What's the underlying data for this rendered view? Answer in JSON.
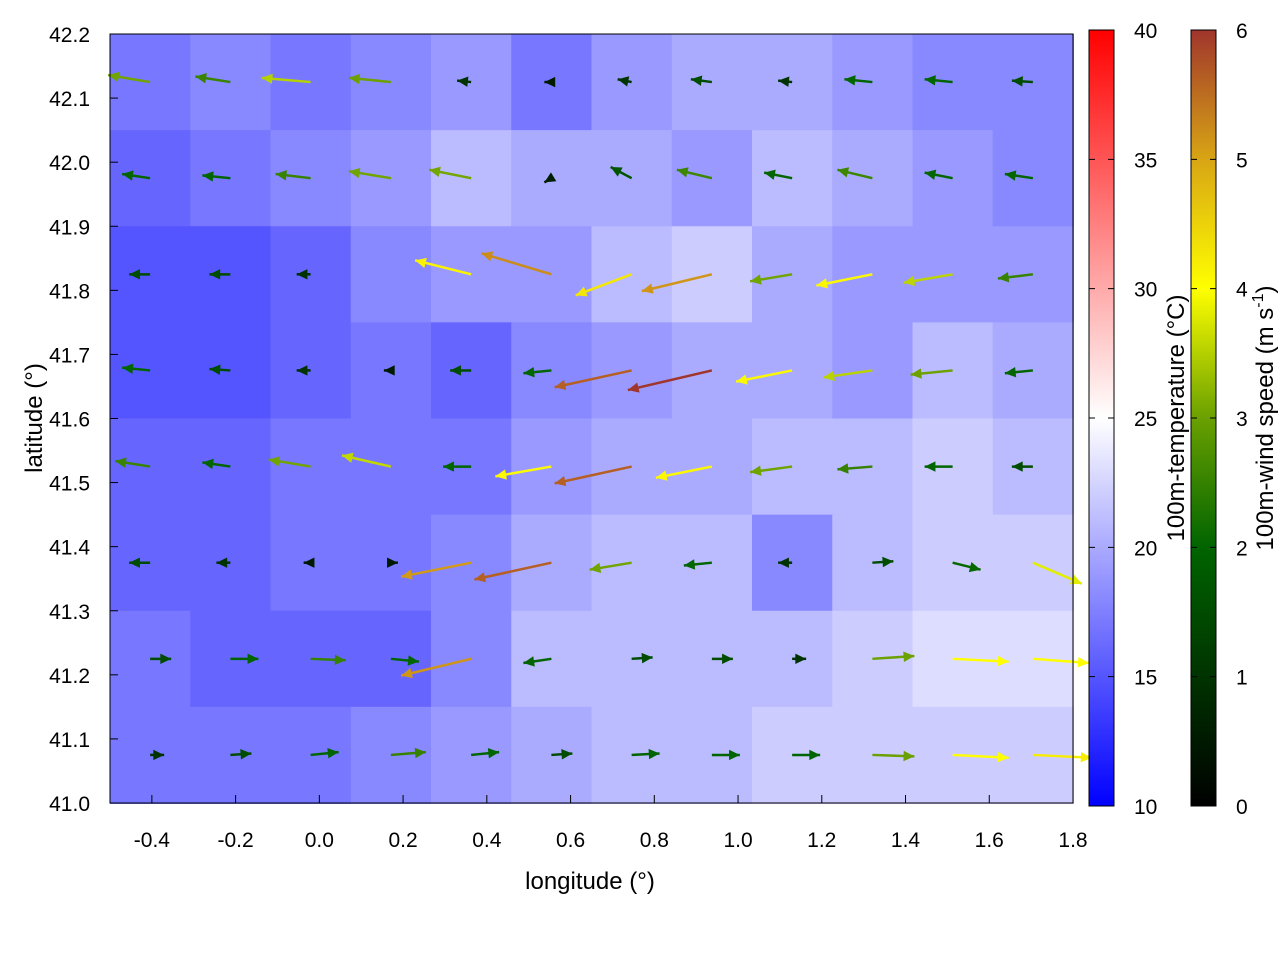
{
  "chart_data": {
    "type": "heatmap",
    "xlabel": "longitude (°)",
    "ylabel": "latitude (°)",
    "xlim": [
      -0.5,
      1.8
    ],
    "ylim": [
      41.0,
      42.2
    ],
    "xticks": [
      "-0.4",
      "-0.2",
      "0.0",
      "0.2",
      "0.4",
      "0.6",
      "0.8",
      "1.0",
      "1.2",
      "1.4",
      "1.6",
      "1.8"
    ],
    "xtick_values": [
      -0.4,
      -0.2,
      0.0,
      0.2,
      0.4,
      0.6,
      0.8,
      1.0,
      1.2,
      1.4,
      1.6,
      1.8
    ],
    "yticks": [
      "41.0",
      "41.1",
      "41.2",
      "41.3",
      "41.4",
      "41.5",
      "41.6",
      "41.7",
      "41.8",
      "41.9",
      "42.0",
      "42.1",
      "42.2"
    ],
    "ytick_values": [
      41.0,
      41.1,
      41.2,
      41.3,
      41.4,
      41.5,
      41.6,
      41.7,
      41.8,
      41.9,
      42.0,
      42.1,
      42.2
    ],
    "temperature_colorbar": {
      "label": "100m-temperature (°C)",
      "range": [
        10,
        40
      ],
      "ticks": [
        "10",
        "15",
        "20",
        "25",
        "30",
        "35",
        "40"
      ],
      "tick_values": [
        10,
        15,
        20,
        25,
        30,
        35,
        40
      ],
      "colors": [
        "#0000ff",
        "#ffffff",
        "#ff0000"
      ]
    },
    "wind_colorbar": {
      "label": "100m-wind speed (m s",
      "label_sup": "-1",
      "label_end": ")",
      "range": [
        0,
        6
      ],
      "ticks": [
        "0",
        "1",
        "2",
        "3",
        "4",
        "5",
        "6"
      ],
      "tick_values": [
        0,
        1,
        2,
        3,
        4,
        5,
        6
      ],
      "colors": [
        "#000000",
        "#003300",
        "#006400",
        "#6aa000",
        "#ffff00",
        "#d8a514",
        "#a0352c"
      ]
    },
    "grid_lons": [
      -0.4,
      -0.2,
      0.0,
      0.2,
      0.4,
      0.6,
      0.8,
      1.0,
      1.2,
      1.4,
      1.6,
      1.75
    ],
    "grid_lats": [
      42.15,
      42.0,
      41.85,
      41.7,
      41.55,
      41.4,
      41.25,
      41.1
    ],
    "temperature": [
      [
        17,
        18,
        17,
        18,
        19,
        17,
        19,
        20,
        20,
        19,
        18,
        18
      ],
      [
        16,
        17,
        18,
        19,
        21,
        20,
        20,
        19,
        21,
        20,
        19,
        18
      ],
      [
        15,
        15,
        16,
        18,
        19,
        19,
        21,
        22,
        20,
        19,
        19,
        19
      ],
      [
        15,
        15,
        16,
        17,
        16,
        18,
        19,
        20,
        20,
        19,
        21,
        20
      ],
      [
        16,
        16,
        17,
        17,
        17,
        19,
        20,
        20,
        21,
        21,
        22,
        21
      ],
      [
        16,
        16,
        17,
        17,
        18,
        20,
        21,
        21,
        18,
        21,
        22,
        22
      ],
      [
        17,
        16,
        16,
        16,
        18,
        21,
        21,
        21,
        21,
        22,
        23,
        23
      ],
      [
        17,
        17,
        17,
        18,
        19,
        20,
        21,
        21,
        22,
        22,
        22,
        22
      ]
    ],
    "wind_u": [
      [
        -3,
        -2.5,
        -3.5,
        -3,
        -1,
        -0.5,
        -1,
        -1.5,
        -1,
        -2,
        -2,
        -1.5
      ],
      [
        -2,
        -2,
        -2.5,
        -3,
        -3,
        -0.5,
        -1.5,
        -2.5,
        -2,
        -2.5,
        -2,
        -2
      ],
      [
        -1.5,
        -1.5,
        -1,
        0,
        -4,
        -5,
        -4,
        -5,
        -3,
        -4,
        -3.5,
        -2.5
      ],
      [
        -2,
        -1.5,
        -1,
        -0.5,
        -1.5,
        -2,
        -5.5,
        -6,
        -4,
        -3.5,
        -3,
        -2
      ],
      [
        -2.5,
        -2,
        -3,
        -3.5,
        -2,
        -4,
        -5.5,
        -4,
        -3,
        -2.5,
        -2,
        -1.5
      ],
      [
        -1.5,
        -1,
        -0.5,
        0.5,
        -5,
        -5.5,
        -3,
        -2,
        -1,
        1.5,
        2,
        3.5
      ],
      [
        1.5,
        2,
        2.5,
        2,
        -5,
        -2,
        1.5,
        1.5,
        1,
        3,
        4,
        4
      ],
      [
        1,
        1.5,
        2,
        2.5,
        2,
        1.5,
        2,
        2,
        2,
        3,
        4,
        4.2
      ]
    ],
    "wind_v": [
      [
        0.5,
        0.4,
        0.3,
        0.3,
        0.1,
        0,
        0.2,
        0.2,
        0.1,
        0.2,
        0.2,
        0.1
      ],
      [
        0.3,
        0.2,
        0.3,
        0.5,
        0.6,
        -0.3,
        0.8,
        0.6,
        0.4,
        0.6,
        0.4,
        0.3
      ],
      [
        0,
        0,
        0,
        0,
        1,
        1.5,
        -1.5,
        -1.2,
        -0.5,
        -0.8,
        -0.6,
        -0.3
      ],
      [
        0.2,
        0.1,
        0,
        0,
        0,
        -0.2,
        -1.2,
        -1.4,
        -0.8,
        -0.5,
        -0.3,
        -0.2
      ],
      [
        0.4,
        0.3,
        0.5,
        0.8,
        0,
        -0.7,
        -1.2,
        -0.8,
        -0.4,
        -0.2,
        0,
        0
      ],
      [
        0,
        0,
        0,
        0,
        -1,
        -1.2,
        -0.5,
        -0.2,
        0,
        0.1,
        -0.5,
        -1.5
      ],
      [
        0,
        0,
        -0.1,
        -0.2,
        -1.2,
        -0.3,
        0.1,
        0,
        0,
        0.2,
        -0.2,
        -0.3
      ],
      [
        0,
        0.1,
        0.2,
        0.2,
        0.2,
        0.1,
        0.1,
        0,
        0,
        -0.1,
        -0.2,
        -0.2
      ]
    ]
  }
}
